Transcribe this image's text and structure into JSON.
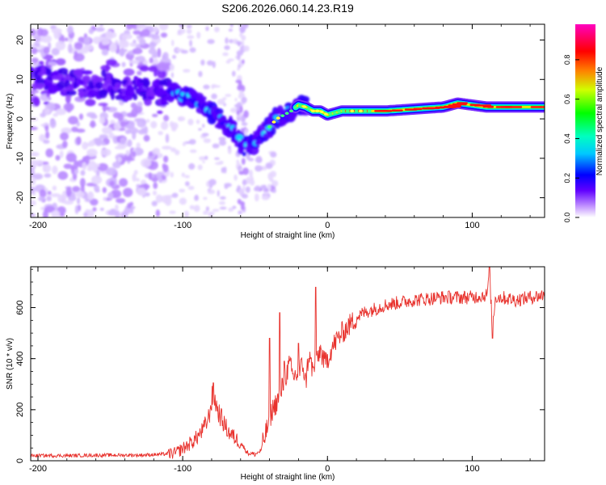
{
  "title": "S206.2026.060.14.23.R19",
  "colors": {
    "snr_line": "#e8322d",
    "colormap": [
      "#ffffff",
      "#b070ff",
      "#5a00ff",
      "#0000ff",
      "#00ffff",
      "#00ff00",
      "#ffff00",
      "#ff8000",
      "#ff0000",
      "#ff00ff"
    ]
  },
  "chart_data": [
    {
      "type": "heatmap",
      "title": "",
      "xlabel": "Height of straight line (km)",
      "ylabel": "Frequency (Hz)",
      "xlim": [
        -205,
        150
      ],
      "ylim": [
        -25,
        24
      ],
      "xticks": [
        -200,
        -100,
        0,
        100
      ],
      "yticks": [
        -20,
        -10,
        0,
        10,
        20
      ],
      "colorbar": {
        "label": "Normalized spectral amplitude",
        "range": [
          0.0,
          0.98
        ],
        "ticks": [
          0.0,
          0.2,
          0.4,
          0.6,
          0.8
        ]
      },
      "ridge": {
        "x": [
          -200,
          -180,
          -160,
          -140,
          -120,
          -105,
          -95,
          -85,
          -75,
          -65,
          -58,
          -50,
          -45,
          -40,
          -35,
          -30,
          -25,
          -20,
          -15,
          -10,
          -5,
          0,
          10,
          20,
          40,
          60,
          80,
          90,
          100,
          110,
          120,
          135,
          150
        ],
        "y": [
          10,
          9.5,
          8.8,
          8,
          7,
          6.5,
          5.5,
          3,
          0,
          -3,
          -7,
          -6,
          -4,
          -2,
          0,
          1,
          2,
          3.5,
          3,
          2,
          2,
          1,
          2,
          2,
          2,
          2.5,
          3,
          4,
          3.5,
          3,
          3,
          3,
          3
        ]
      }
    },
    {
      "type": "line",
      "title": "",
      "xlabel": "Height of straight line (km)",
      "ylabel": "SNR (10 * v/v)",
      "xlim": [
        -205,
        150
      ],
      "ylim": [
        0,
        760
      ],
      "xticks": [
        -200,
        -100,
        0,
        100
      ],
      "yticks": [
        0,
        200,
        400,
        600
      ],
      "series": [
        {
          "name": "SNR",
          "x": [
            -205,
            -180,
            -150,
            -130,
            -115,
            -105,
            -98,
            -92,
            -86,
            -82,
            -79,
            -76,
            -72,
            -68,
            -64,
            -60,
            -55,
            -50,
            -46,
            -42,
            -38,
            -35,
            -32,
            -29,
            -26,
            -24,
            -20,
            -17,
            -15,
            -13,
            -10,
            -7,
            -5,
            -2,
            0,
            3,
            6,
            10,
            15,
            20,
            25,
            30,
            40,
            50,
            60,
            80,
            100,
            110,
            112,
            114,
            116,
            120,
            130,
            140,
            150
          ],
          "y": [
            20,
            20,
            22,
            22,
            25,
            30,
            55,
            80,
            120,
            170,
            270,
            200,
            150,
            110,
            90,
            70,
            30,
            25,
            40,
            120,
            200,
            230,
            270,
            330,
            380,
            330,
            340,
            380,
            300,
            420,
            350,
            390,
            440,
            380,
            400,
            440,
            470,
            500,
            530,
            560,
            580,
            590,
            610,
            620,
            630,
            640,
            640,
            650,
            720,
            520,
            640,
            640,
            630,
            640,
            650
          ]
        }
      ],
      "spikes": [
        {
          "x": -79,
          "y": 305
        },
        {
          "x": -40,
          "y": 480
        },
        {
          "x": -33,
          "y": 580
        },
        {
          "x": -30,
          "y": 390
        },
        {
          "x": -20,
          "y": 460
        },
        {
          "x": -8,
          "y": 680
        },
        {
          "x": 112,
          "y": 770
        },
        {
          "x": 114,
          "y": 480
        }
      ]
    }
  ]
}
